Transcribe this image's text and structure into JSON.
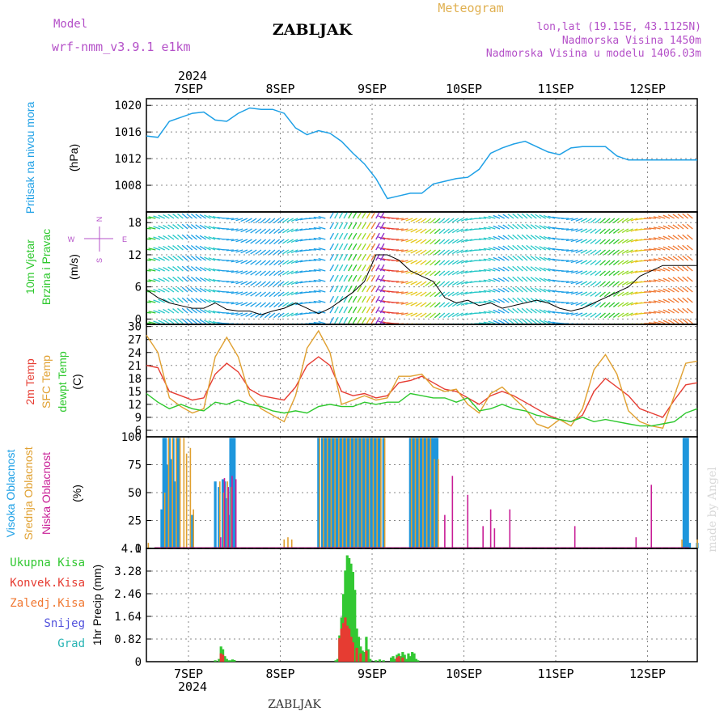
{
  "header": {
    "model_label": "Model",
    "model_name": "wrf-nmm_v3.9.1 e1km",
    "station": "ZABLJAK",
    "product": "Meteogram",
    "coords": "lon,lat (19.15E, 43.1125N)",
    "elevation": "Nadmorska Visina 1450m",
    "model_elevation": "Nadmorska Visina u modelu 1406.03m",
    "footer_station": "ZABLJAK",
    "credit": "made by Angel",
    "year": "2024"
  },
  "colors": {
    "pressure": "#1ea0e6",
    "t2m": "#e63c32",
    "sfc": "#e0a030",
    "dew": "#2dc82d",
    "high_cloud": "#1e96dc",
    "mid_cloud": "#e0a030",
    "low_cloud": "#c81e96",
    "total_rain": "#32c832",
    "conv_rain": "#e63c32",
    "frozen": "#f07832",
    "snow": "#5050dc",
    "hail": "#28b4b4",
    "wind_label": "#2dc82d",
    "compass": "#b450c8"
  },
  "chart_data": [
    {
      "type": "line",
      "name": "pressure",
      "ylabel_1": "Pritisak na nivou mora",
      "ylabel_unit": "(hPa)",
      "ylim": [
        1004,
        1021
      ],
      "yticks": [
        1020,
        1016,
        1012,
        1008
      ],
      "x_categories": [
        "7SEP",
        "8SEP",
        "9SEP",
        "10SEP",
        "11SEP",
        "12SEP"
      ],
      "grid": true,
      "series": [
        {
          "hours": [
            0,
            3,
            6,
            9,
            12,
            15,
            18,
            21,
            24,
            27,
            30,
            33,
            36,
            39,
            42,
            45,
            48,
            51,
            54,
            57,
            60,
            63,
            66,
            69,
            72,
            75,
            78,
            81,
            84,
            87,
            90,
            93,
            96,
            99,
            102,
            105,
            108,
            111,
            114,
            117,
            120,
            123,
            126,
            129,
            132,
            135,
            138,
            141,
            144
          ],
          "values": [
            1015.4,
            1015.2,
            1017.6,
            1018.2,
            1018.8,
            1019.0,
            1017.8,
            1017.6,
            1018.8,
            1019.6,
            1019.4,
            1019.4,
            1018.8,
            1016.6,
            1015.6,
            1016.2,
            1015.8,
            1014.6,
            1012.8,
            1011.2,
            1009.0,
            1006.0,
            1006.4,
            1006.8,
            1006.8,
            1008.2,
            1008.6,
            1009.0,
            1009.2,
            1010.4,
            1012.8,
            1013.6,
            1014.2,
            1014.6,
            1013.8,
            1013.0,
            1012.6,
            1013.6,
            1013.8,
            1013.8,
            1013.8,
            1012.4,
            1011.8,
            1011.8,
            1011.8,
            1011.8,
            1011.8,
            1011.8,
            1011.8
          ]
        }
      ]
    },
    {
      "type": "line",
      "name": "wind",
      "ylabel_1": "10m Vjetar",
      "ylabel_2": "Brzina i Pravac",
      "ylabel_unit": "(m/s)",
      "compass_n": "N",
      "compass_s": "S",
      "compass_e": "E",
      "compass_w": "W",
      "ylim": [
        -1,
        20
      ],
      "yticks": [
        18,
        12,
        6,
        0
      ],
      "grid": true,
      "series": [
        {
          "name": "speed",
          "hours": [
            0,
            3,
            6,
            9,
            12,
            15,
            18,
            21,
            24,
            27,
            30,
            33,
            36,
            39,
            42,
            45,
            48,
            51,
            54,
            57,
            60,
            63,
            66,
            69,
            72,
            75,
            78,
            81,
            84,
            87,
            90,
            93,
            96,
            99,
            102,
            105,
            108,
            111,
            114,
            117,
            120,
            123,
            126,
            129,
            132,
            135,
            138,
            141,
            144
          ],
          "values": [
            5.5,
            4.0,
            3.0,
            2.5,
            2.0,
            2.0,
            3.0,
            1.8,
            1.5,
            1.5,
            0.8,
            1.5,
            2.0,
            3.0,
            2.0,
            1.0,
            2.0,
            3.5,
            5.0,
            7.0,
            12.0,
            12.0,
            11.0,
            9.0,
            8.0,
            7.0,
            4.0,
            3.0,
            3.5,
            2.5,
            3.0,
            2.0,
            2.5,
            3.0,
            3.5,
            3.0,
            2.0,
            1.5,
            2.0,
            3.0,
            4.0,
            5.0,
            6.0,
            8.0,
            9.0,
            10.0,
            10.0,
            10.0,
            10.0
          ]
        }
      ]
    },
    {
      "type": "line",
      "name": "temperature",
      "ylabel_1": "2m Temp",
      "ylabel_2": "SFC Temp",
      "ylabel_3": "dewpt Temp",
      "ylabel_unit": "(C)",
      "ylim": [
        4.5,
        30.5
      ],
      "yticks": [
        30,
        27,
        24,
        21,
        18,
        15,
        12,
        9,
        6
      ],
      "grid": true,
      "series": [
        {
          "name": "2m Temp",
          "hours": [
            0,
            3,
            6,
            9,
            12,
            15,
            18,
            21,
            24,
            27,
            30,
            33,
            36,
            39,
            42,
            45,
            48,
            51,
            54,
            57,
            60,
            63,
            66,
            69,
            72,
            75,
            78,
            81,
            84,
            87,
            90,
            93,
            96,
            99,
            102,
            105,
            108,
            111,
            114,
            117,
            120,
            123,
            126,
            129,
            132,
            135,
            138,
            141,
            144
          ],
          "values": [
            21.0,
            20.5,
            15.0,
            14.0,
            13.0,
            13.5,
            19.0,
            21.5,
            19.5,
            15.5,
            14.0,
            13.5,
            13.0,
            16.0,
            21.0,
            23.0,
            21.0,
            15.0,
            14.0,
            14.5,
            13.5,
            14.0,
            17.0,
            17.5,
            18.5,
            17.0,
            15.5,
            15.0,
            13.5,
            12.0,
            14.0,
            15.0,
            14.0,
            12.5,
            11.0,
            9.5,
            8.5,
            8.0,
            9.5,
            15.0,
            18.0,
            16.0,
            14.0,
            11.0,
            10.0,
            9.0,
            13.0,
            16.5,
            17.0
          ]
        },
        {
          "name": "SFC Temp",
          "hours": [
            0,
            3,
            6,
            9,
            12,
            15,
            18,
            21,
            24,
            27,
            30,
            33,
            36,
            39,
            42,
            45,
            48,
            51,
            54,
            57,
            60,
            63,
            66,
            69,
            72,
            75,
            78,
            81,
            84,
            87,
            90,
            93,
            96,
            99,
            102,
            105,
            108,
            111,
            114,
            117,
            120,
            123,
            126,
            129,
            132,
            135,
            138,
            141,
            144
          ],
          "values": [
            28.0,
            24.0,
            13.5,
            11.5,
            10.0,
            11.0,
            23.0,
            27.5,
            23.0,
            14.0,
            11.0,
            9.5,
            8.0,
            14.0,
            25.0,
            29.0,
            24.0,
            12.0,
            13.0,
            14.0,
            13.0,
            13.5,
            18.5,
            18.5,
            19.0,
            16.0,
            15.0,
            15.5,
            12.0,
            10.0,
            14.5,
            16.0,
            13.5,
            11.0,
            7.5,
            6.5,
            8.5,
            7.0,
            11.0,
            20.0,
            23.5,
            19.0,
            10.5,
            8.0,
            7.0,
            6.5,
            14.0,
            21.5,
            22.0
          ]
        },
        {
          "name": "dewpt Temp",
          "hours": [
            0,
            3,
            6,
            9,
            12,
            15,
            18,
            21,
            24,
            27,
            30,
            33,
            36,
            39,
            42,
            45,
            48,
            51,
            54,
            57,
            60,
            63,
            66,
            69,
            72,
            75,
            78,
            81,
            84,
            87,
            90,
            93,
            96,
            99,
            102,
            105,
            108,
            111,
            114,
            117,
            120,
            123,
            126,
            129,
            132,
            135,
            138,
            141,
            144
          ],
          "values": [
            14.5,
            12.5,
            11.0,
            12.0,
            11.0,
            10.5,
            12.5,
            12.0,
            13.0,
            12.0,
            11.5,
            10.5,
            10.0,
            10.5,
            10.0,
            11.5,
            12.0,
            11.5,
            11.5,
            12.5,
            12.0,
            12.5,
            12.5,
            14.5,
            14.0,
            13.5,
            13.5,
            12.5,
            13.5,
            10.5,
            11.0,
            12.0,
            11.0,
            10.5,
            9.5,
            9.0,
            8.5,
            8.0,
            9.0,
            8.0,
            8.5,
            8.0,
            7.5,
            7.0,
            7.0,
            7.5,
            8.0,
            10.0,
            11.0
          ]
        }
      ]
    },
    {
      "type": "bar",
      "name": "cloud",
      "ylabel_1": "Visoka Oblacnost",
      "ylabel_2": "Srednja Oblacnost",
      "ylabel_3": "Niska Oblacnost",
      "ylabel_unit": "(%)",
      "ylim": [
        0,
        100
      ],
      "yticks": [
        100,
        75,
        50,
        25,
        0
      ],
      "grid": true,
      "series": [
        {
          "name": "Visoka Oblacnost",
          "hours": [
            4,
            4.5,
            5,
            5.5,
            6,
            6.5,
            7,
            7.5,
            8,
            8.5,
            12,
            18,
            19,
            20,
            20.5,
            21,
            21.5,
            22,
            22.5,
            23,
            45,
            46,
            46.5,
            47,
            47.5,
            48,
            48.5,
            49,
            49.5,
            50,
            50.5,
            51,
            51.5,
            52,
            52.5,
            53,
            53.5,
            54,
            54.5,
            55,
            55.5,
            56,
            56.5,
            57,
            57.5,
            58,
            58.5,
            59,
            59.5,
            60,
            60.5,
            61,
            62,
            69,
            69.5,
            70,
            70.5,
            71,
            71.5,
            72,
            72.5,
            73,
            73.5,
            74,
            74.5,
            75,
            75.5,
            76,
            140.5,
            141,
            141.5,
            142,
            144
          ],
          "values": [
            35,
            99,
            99,
            75,
            99,
            80,
            99,
            60,
            99,
            99,
            30,
            60,
            55,
            62,
            60,
            45,
            30,
            99,
            99,
            99,
            99,
            99,
            99,
            99,
            99,
            99,
            99,
            99,
            99,
            99,
            99,
            99,
            99,
            99,
            99,
            99,
            99,
            99,
            99,
            99,
            99,
            99,
            99,
            99,
            99,
            99,
            99,
            99,
            99,
            99,
            99,
            99,
            99,
            99,
            99,
            99,
            99,
            99,
            99,
            99,
            99,
            99,
            99,
            99,
            99,
            99,
            99,
            99,
            99,
            99,
            99,
            5,
            5
          ]
        },
        {
          "name": "Srednja Oblacnost",
          "hours": [
            0.5,
            4.8,
            5.8,
            6.8,
            7.8,
            8.8,
            9.8,
            10.5,
            11.5,
            12.3,
            19.2,
            20.2,
            21.2,
            22.2,
            45.3,
            46.3,
            47.3,
            48.3,
            49.3,
            50.3,
            51.3,
            52.3,
            53.3,
            54.3,
            55.3,
            56.3,
            57.3,
            58.3,
            59.3,
            60.3,
            61.3,
            62.3,
            69.3,
            70.3,
            71.3,
            72.3,
            73.3,
            74.3,
            75.3,
            76.3,
            36,
            37,
            38,
            140,
            144
          ],
          "values": [
            5,
            50,
            99,
            99,
            99,
            99,
            99,
            85,
            90,
            35,
            60,
            50,
            60,
            55,
            99,
            99,
            99,
            99,
            99,
            99,
            99,
            99,
            99,
            99,
            99,
            99,
            99,
            99,
            99,
            99,
            99,
            99,
            99,
            99,
            99,
            99,
            99,
            99,
            80,
            80,
            8,
            10,
            8,
            8,
            8
          ]
        },
        {
          "name": "Niska Oblacnost",
          "hours": [
            19.4,
            20.4,
            21.4,
            22.4,
            23.4,
            78,
            80,
            84,
            88,
            90,
            91,
            95,
            112,
            128,
            132
          ],
          "values": [
            10,
            63,
            55,
            65,
            62,
            30,
            65,
            48,
            20,
            35,
            18,
            35,
            20,
            10,
            57
          ]
        }
      ]
    },
    {
      "type": "bar",
      "name": "precipitation",
      "ylabel_unit": "1hr Precip (mm)",
      "ylim": [
        0,
        4.1
      ],
      "yticks": [
        4.1,
        3.28,
        2.46,
        1.64,
        0.82,
        0
      ],
      "x_categories": [
        "7SEP",
        "8SEP",
        "9SEP",
        "10SEP",
        "11SEP",
        "12SEP"
      ],
      "grid": true,
      "legend": [
        "Ukupna Kisa",
        "Konvek.Kisa",
        "Zaledj.Kisa",
        "Snijeg",
        "Grad"
      ],
      "series": [
        {
          "name": "Ukupna Kisa",
          "hours": [
            18,
            19,
            19.5,
            20,
            20.5,
            21,
            21.5,
            22,
            22.5,
            23,
            49.5,
            50,
            50.5,
            51,
            51.5,
            52,
            52.5,
            53,
            53.5,
            54,
            54.5,
            55,
            55.5,
            56,
            56.5,
            57,
            57.5,
            58,
            58.5,
            60,
            61,
            62,
            64,
            64.5,
            65,
            65.5,
            66,
            66.5,
            67,
            67.5,
            68,
            68.5,
            69,
            69.5,
            70,
            70.5,
            71
          ],
          "values": [
            0.05,
            0.1,
            0.55,
            0.45,
            0.2,
            0.1,
            0.05,
            0.05,
            0.08,
            0.06,
            0.05,
            0.1,
            0.95,
            1.6,
            2.45,
            3.3,
            3.85,
            3.75,
            3.55,
            3.25,
            2.6,
            1.2,
            0.9,
            0.55,
            0.4,
            0.35,
            0.9,
            0.45,
            0.1,
            0.05,
            0.08,
            0.05,
            0.15,
            0.2,
            0.1,
            0.25,
            0.3,
            0.2,
            0.35,
            0.25,
            0.1,
            0.3,
            0.2,
            0.35,
            0.3,
            0.1,
            0.05
          ]
        },
        {
          "name": "Konvek.Kisa",
          "hours": [
            19.5,
            20,
            50.5,
            51,
            51.5,
            52,
            52.5,
            53,
            53.5,
            54,
            55,
            56,
            57.5,
            65.5,
            66,
            67
          ],
          "values": [
            0.3,
            0.25,
            0.85,
            1.2,
            1.4,
            1.6,
            1.3,
            1.2,
            0.9,
            0.7,
            0.5,
            0.3,
            0.4,
            0.15,
            0.2,
            0.15
          ]
        }
      ]
    }
  ]
}
